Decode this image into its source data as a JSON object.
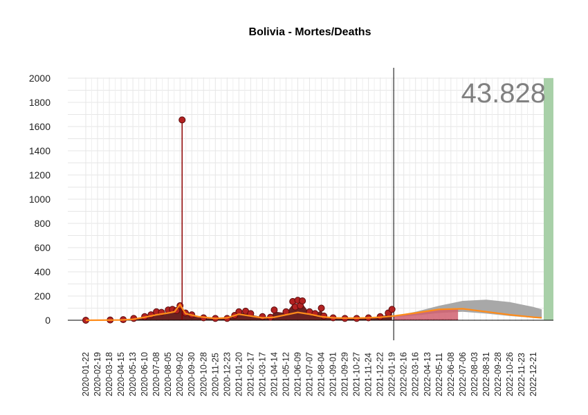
{
  "chart_data": {
    "type": "line",
    "title": "Bolivia - Mortes/Deaths",
    "total_label": "43.828",
    "ylim": [
      0,
      2000
    ],
    "yticks": [
      0,
      200,
      400,
      600,
      800,
      1000,
      1200,
      1400,
      1600,
      1800,
      2000
    ],
    "xlim": [
      "2020-01-22",
      "2023-01-22"
    ],
    "cutoff_date": "2022-01-23",
    "x_tick_labels": [
      "2020-01-22",
      "2020-02-19",
      "2020-03-18",
      "2020-04-15",
      "2020-05-13",
      "2020-06-10",
      "2020-07-08",
      "2020-08-05",
      "2020-09-02",
      "2020-09-30",
      "2020-10-28",
      "2020-11-25",
      "2020-12-23",
      "2021-01-20",
      "2021-02-17",
      "2021-03-17",
      "2021-04-14",
      "2021-05-12",
      "2021-06-09",
      "2021-07-07",
      "2021-08-04",
      "2021-09-01",
      "2021-09-29",
      "2021-10-27",
      "2021-11-24",
      "2021-12-22",
      "2022-01-19",
      "2022-02-16",
      "2022-03-16",
      "2022-04-13",
      "2022-05-11",
      "2022-06-08",
      "2022-07-06",
      "2022-08-03",
      "2022-08-31",
      "2022-09-28",
      "2022-10-26",
      "2022-11-23",
      "2022-12-21"
    ],
    "series": [
      {
        "style": "points",
        "x": [
          "2020-01-22",
          "2020-03-20",
          "2020-04-20",
          "2020-05-15",
          "2020-06-10",
          "2020-06-25",
          "2020-07-08",
          "2020-07-20",
          "2020-08-05",
          "2020-08-15",
          "2020-08-25",
          "2020-09-02",
          "2020-09-07",
          "2020-09-15",
          "2020-09-30",
          "2020-10-28",
          "2020-11-25",
          "2020-12-23",
          "2021-01-10",
          "2021-01-20",
          "2021-02-05",
          "2021-02-17",
          "2021-03-17",
          "2021-04-05",
          "2021-04-14",
          "2021-05-12",
          "2021-05-28",
          "2021-06-03",
          "2021-06-09",
          "2021-06-15",
          "2021-06-20",
          "2021-07-07",
          "2021-07-20",
          "2021-08-04",
          "2021-08-10",
          "2021-09-01",
          "2021-09-29",
          "2021-10-27",
          "2021-11-24",
          "2021-12-22",
          "2022-01-10",
          "2022-01-19"
        ],
        "values": [
          0,
          2,
          5,
          15,
          30,
          45,
          70,
          65,
          85,
          90,
          80,
          120,
          1655,
          60,
          45,
          20,
          15,
          15,
          40,
          70,
          75,
          55,
          30,
          25,
          85,
          70,
          155,
          110,
          165,
          120,
          160,
          70,
          55,
          100,
          35,
          20,
          15,
          15,
          20,
          30,
          60,
          90
        ]
      },
      {
        "style": "line",
        "name": "trend",
        "x": [
          "2020-01-22",
          "2020-04-15",
          "2020-05-13",
          "2020-06-10",
          "2020-07-08",
          "2020-08-05",
          "2020-08-20",
          "2020-09-02",
          "2020-09-15",
          "2020-10-15",
          "2020-11-25",
          "2020-12-23",
          "2021-01-20",
          "2021-02-17",
          "2021-03-17",
          "2021-04-14",
          "2021-05-12",
          "2021-06-09",
          "2021-07-07",
          "2021-08-04",
          "2021-09-01",
          "2021-09-29",
          "2021-10-27",
          "2021-11-24",
          "2021-12-22",
          "2022-01-23",
          "2022-03-16",
          "2022-05-11",
          "2022-07-06",
          "2022-08-31",
          "2022-10-26",
          "2022-12-21",
          "2023-01-10"
        ],
        "values": [
          0,
          2,
          8,
          25,
          45,
          60,
          70,
          130,
          55,
          30,
          15,
          20,
          50,
          35,
          20,
          25,
          45,
          65,
          50,
          30,
          20,
          18,
          18,
          20,
          25,
          35,
          60,
          90,
          95,
          70,
          45,
          25,
          20
        ]
      }
    ],
    "projection": {
      "x": [
        "2022-01-23",
        "2022-03-16",
        "2022-05-11",
        "2022-07-06",
        "2022-08-31",
        "2022-10-26",
        "2022-12-21",
        "2023-01-10"
      ],
      "upper": [
        35,
        70,
        120,
        160,
        170,
        150,
        110,
        90
      ],
      "lower": [
        25,
        40,
        60,
        70,
        55,
        35,
        20,
        15
      ],
      "observed_end": "2022-06-25"
    },
    "colors": {
      "points": "#b22222",
      "spike_line": "#8b0000",
      "dark_area": "#5a0a0a",
      "trend": "#ff8c1a",
      "projection_band": "#a8a8a8",
      "observed_bars": "#d06070",
      "total_bar": "#a8d0a8"
    },
    "grid": true
  }
}
